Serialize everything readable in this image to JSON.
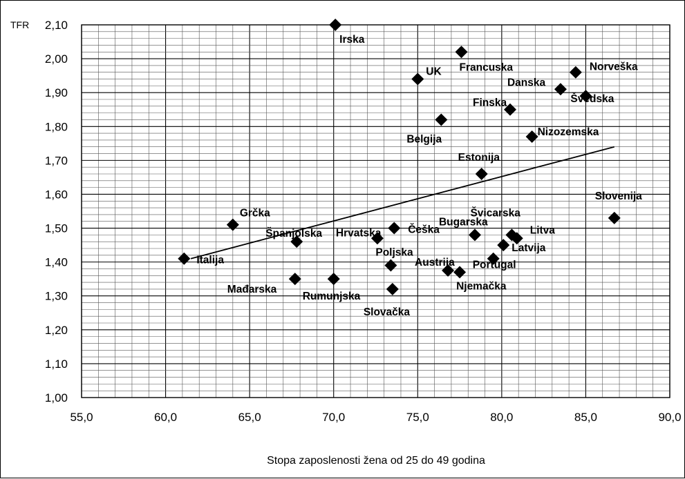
{
  "chart_data": {
    "type": "scatter",
    "title": "",
    "xlabel": "Stopa zaposlenosti žena od 25 do 49 godina",
    "ylabel": "TFR",
    "xlim": [
      55.0,
      90.0
    ],
    "ylim": [
      1.0,
      2.1
    ],
    "x_ticks": [
      "55,0",
      "60,0",
      "65,0",
      "70,0",
      "75,0",
      "80,0",
      "85,0",
      "90,0"
    ],
    "y_ticks": [
      "1,00",
      "1,10",
      "1,20",
      "1,30",
      "1,40",
      "1,50",
      "1,60",
      "1,70",
      "1,80",
      "1,90",
      "2,00",
      "2,10"
    ],
    "grid": true,
    "legend": "none",
    "trendline": {
      "x": [
        61.5,
        86.7
      ],
      "y": [
        1.41,
        1.74
      ]
    },
    "points": [
      {
        "label": "Italija",
        "x": 61.1,
        "y": 1.41
      },
      {
        "label": "Grčka",
        "x": 64.0,
        "y": 1.51
      },
      {
        "label": "Španjolska",
        "x": 67.8,
        "y": 1.46
      },
      {
        "label": "Mađarska",
        "x": 67.7,
        "y": 1.35
      },
      {
        "label": "Rumunjska",
        "x": 70.0,
        "y": 1.35
      },
      {
        "label": "Irska",
        "x": 70.1,
        "y": 2.1
      },
      {
        "label": "Hrvatska",
        "x": 72.6,
        "y": 1.47
      },
      {
        "label": "Češka",
        "x": 73.6,
        "y": 1.5
      },
      {
        "label": "Poljska",
        "x": 73.4,
        "y": 1.39
      },
      {
        "label": "Slovačka",
        "x": 73.5,
        "y": 1.32
      },
      {
        "label": "UK",
        "x": 75.0,
        "y": 1.94
      },
      {
        "label": "Belgija",
        "x": 76.4,
        "y": 1.82
      },
      {
        "label": "Austrija",
        "x": 76.8,
        "y": 1.375
      },
      {
        "label": "Francuska",
        "x": 77.6,
        "y": 2.02
      },
      {
        "label": "Njemačka",
        "x": 77.5,
        "y": 1.37
      },
      {
        "label": "Bugarska",
        "x": 78.4,
        "y": 1.48
      },
      {
        "label": "Estonija",
        "x": 78.8,
        "y": 1.66
      },
      {
        "label": "Portugal",
        "x": 79.5,
        "y": 1.41
      },
      {
        "label": "Latvija",
        "x": 80.1,
        "y": 1.45
      },
      {
        "label": "Finska",
        "x": 80.5,
        "y": 1.85
      },
      {
        "label": "Švicarska",
        "x": 80.6,
        "y": 1.48
      },
      {
        "label": "Litva",
        "x": 80.9,
        "y": 1.47
      },
      {
        "label": "Nizozemska",
        "x": 81.8,
        "y": 1.77
      },
      {
        "label": "Danska",
        "x": 83.5,
        "y": 1.91
      },
      {
        "label": "Norveška",
        "x": 84.4,
        "y": 1.96
      },
      {
        "label": "Švedska",
        "x": 85.0,
        "y": 1.89
      },
      {
        "label": "Slovenija",
        "x": 86.7,
        "y": 1.53
      }
    ]
  }
}
